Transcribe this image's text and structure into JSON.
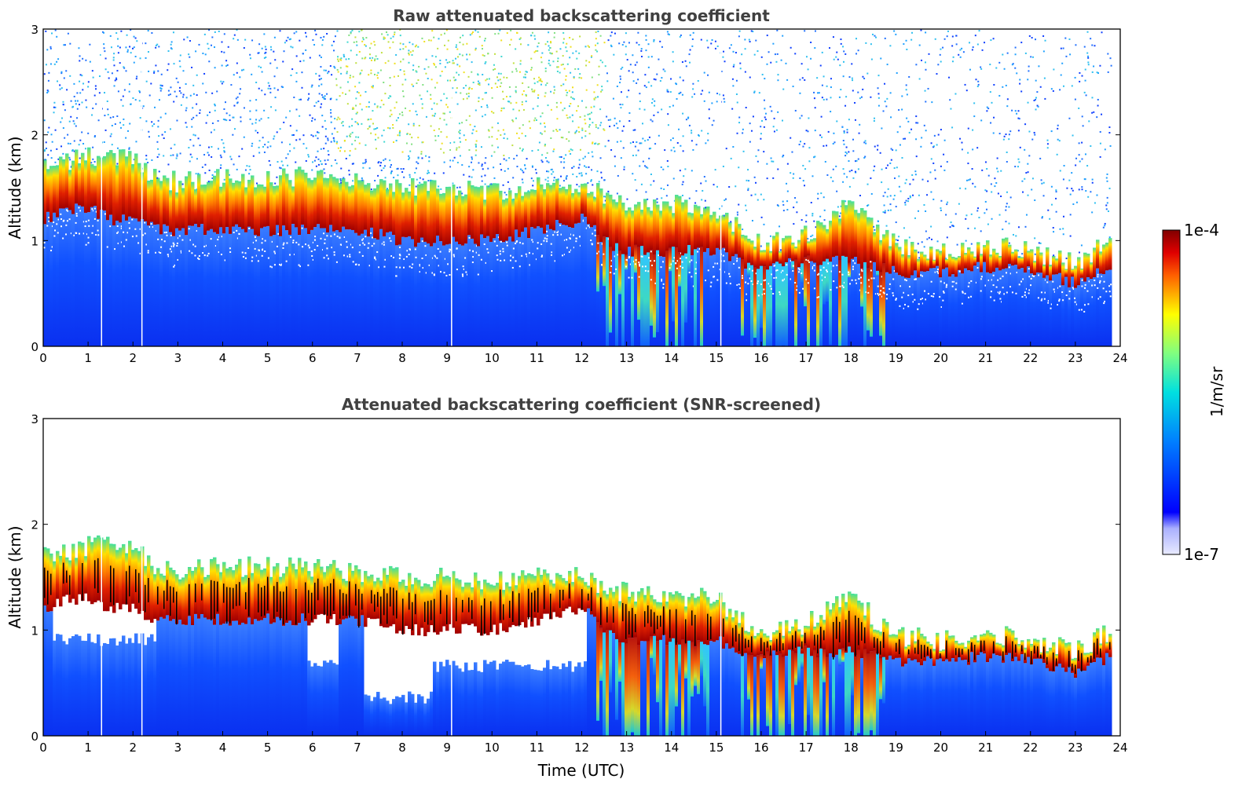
{
  "chart_data": [
    {
      "type": "heatmap",
      "title": "Raw attenuated backscattering coefficient",
      "xlabel": "",
      "ylabel": "Altitude (km)",
      "xlim": [
        0,
        24
      ],
      "ylim": [
        0,
        3
      ],
      "xticks": [
        "0",
        "1",
        "2",
        "3",
        "4",
        "5",
        "6",
        "7",
        "8",
        "9",
        "10",
        "11",
        "12",
        "13",
        "14",
        "15",
        "16",
        "17",
        "18",
        "19",
        "20",
        "21",
        "22",
        "23",
        "24"
      ],
      "yticks": [
        "0",
        "1",
        "2",
        "3"
      ],
      "data_end_time": 23.8,
      "gap_times": [
        1.3,
        2.2,
        9.1,
        15.1
      ],
      "cloud_layer": {
        "times": [
          0.0,
          0.5,
          1.0,
          1.5,
          2.0,
          2.5,
          3.0,
          4.0,
          5.0,
          6.0,
          7.0,
          8.0,
          9.0,
          10.0,
          11.0,
          12.0,
          12.5,
          13.0,
          14.0,
          14.5,
          15.0,
          15.5,
          16.0,
          17.0,
          17.5,
          18.0,
          18.5,
          19.0,
          20.0,
          21.0,
          21.5,
          22.0,
          23.0,
          23.8
        ],
        "base_km": [
          1.2,
          1.3,
          1.3,
          1.2,
          1.2,
          1.1,
          1.1,
          1.1,
          1.1,
          1.1,
          1.1,
          1.0,
          1.0,
          1.0,
          1.1,
          1.2,
          1.0,
          0.9,
          0.9,
          0.9,
          0.9,
          0.8,
          0.75,
          0.8,
          0.8,
          0.8,
          0.75,
          0.7,
          0.7,
          0.75,
          0.75,
          0.7,
          0.6,
          0.75
        ],
        "top_km": [
          1.7,
          1.75,
          1.8,
          1.8,
          1.75,
          1.6,
          1.55,
          1.6,
          1.6,
          1.6,
          1.55,
          1.5,
          1.5,
          1.45,
          1.5,
          1.55,
          1.4,
          1.35,
          1.35,
          1.3,
          1.3,
          1.1,
          0.95,
          1.05,
          1.2,
          1.35,
          1.1,
          0.95,
          0.9,
          0.95,
          0.95,
          0.9,
          0.8,
          1.0
        ]
      },
      "precipitation_periods_utc": [
        [
          12.3,
          14.8
        ],
        [
          15.5,
          18.8
        ]
      ],
      "noise_region": "above cloud top, strongest 6–12 UTC"
    },
    {
      "type": "heatmap",
      "title": "Attenuated backscattering coefficient (SNR-screened)",
      "xlabel": "Time (UTC)",
      "ylabel": "Altitude (km)",
      "xlim": [
        0,
        24
      ],
      "ylim": [
        0,
        3
      ],
      "xticks": [
        "0",
        "1",
        "2",
        "3",
        "4",
        "5",
        "6",
        "7",
        "8",
        "9",
        "10",
        "11",
        "12",
        "13",
        "14",
        "15",
        "16",
        "17",
        "18",
        "19",
        "20",
        "21",
        "22",
        "23",
        "24"
      ],
      "yticks": [
        "0",
        "1",
        "2",
        "3"
      ],
      "screened_region": "noise above cloud top removed; low-SNR pockets below cloud removed",
      "screened_gaps_km": [
        {
          "from": 0.2,
          "to": 2.5,
          "base_km": 0.85
        },
        {
          "from": 5.9,
          "to": 6.6,
          "base_km": 0.65
        },
        {
          "from": 7.1,
          "to": 8.7,
          "base_km": 0.3
        },
        {
          "from": 8.7,
          "to": 12.1,
          "base_km": 0.6
        }
      ]
    }
  ],
  "colorbar": {
    "label": "1/m/sr",
    "max_label": "1e-4",
    "min_label": "1e-7",
    "scale": "log",
    "colormap": "jet"
  },
  "colors": {
    "title": "#404040",
    "low": "#0a2bf0",
    "mid": "#20c8e0",
    "high": "#e03000",
    "peak": "#800000"
  }
}
